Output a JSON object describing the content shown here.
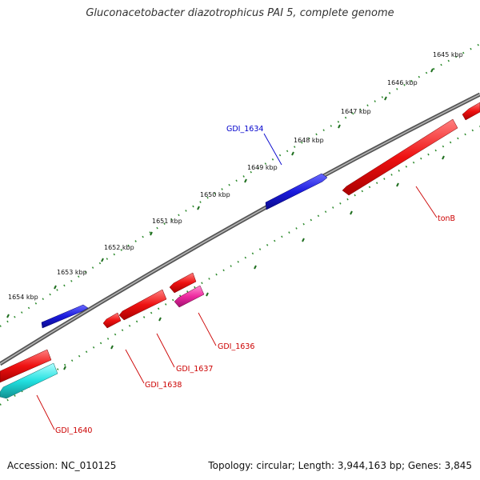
{
  "title": "Gluconacetobacter diazotrophicus PAI 5, complete genome",
  "footer": {
    "accession": "Accession: NC_010125",
    "summary": "Topology: circular; Length: 3,944,163 bp; Genes: 3,845"
  },
  "colors": {
    "backbone": "#8a8a8a",
    "ruler": "#2e8b2e",
    "gene_red": "#ee1111",
    "gene_blue": "#1a1add",
    "gene_cyan": "#22e0e0",
    "gene_magenta": "#ee2aa0",
    "label_red": "#cc0000",
    "label_blue": "#0000cc"
  },
  "ruler_labels": [
    "1645 kbp",
    "1646 kbp",
    "1647 kbp",
    "1648 kbp",
    "1649 kbp",
    "1650 kbp",
    "1651 kbp",
    "1652 kbp",
    "1653 kbp",
    "1654 kbp"
  ],
  "genes": [
    {
      "name": "tonB",
      "color": "red",
      "strand": "-"
    },
    {
      "name": "GDI_1634",
      "color": "blue",
      "strand": "+"
    },
    {
      "name": "GDI_1636",
      "color": "magenta",
      "strand": "-"
    },
    {
      "name": "GDI_1637",
      "color": "red",
      "strand": "-"
    },
    {
      "name": "GDI_1638",
      "color": "red",
      "strand": "-"
    },
    {
      "name": "GDI_1640",
      "color": "cyan",
      "strand": "-"
    }
  ]
}
